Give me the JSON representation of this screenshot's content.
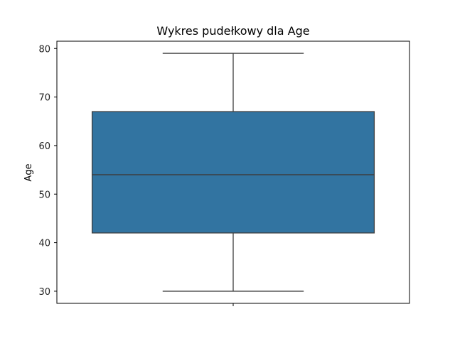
{
  "chart_data": {
    "type": "box",
    "title": "Wykres pudełkowy dla Age",
    "xlabel": "",
    "ylabel": "Age",
    "ylim": [
      27.5,
      81.5
    ],
    "yticks": [
      30,
      40,
      50,
      60,
      70,
      80
    ],
    "grid": false,
    "series": [
      {
        "whisker_low": 30,
        "q1": 42,
        "median": 54,
        "q3": 67,
        "whisker_high": 79
      }
    ],
    "colors": {
      "box_fill": "#3274a1",
      "line": "#3d3d3d",
      "axes": "#000000"
    }
  }
}
